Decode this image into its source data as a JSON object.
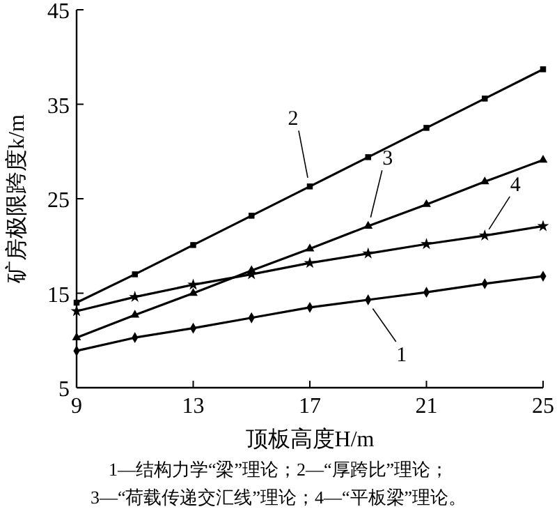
{
  "chart_data": {
    "type": "line",
    "xlabel": "顶板高度H/m",
    "ylabel": "矿房极限跨度k/m",
    "x": [
      9,
      11,
      13,
      15,
      17,
      19,
      21,
      23,
      25
    ],
    "series": [
      {
        "name": "1",
        "color": "#000000",
        "marker": "diamond",
        "values": [
          8.9,
          10.3,
          11.3,
          12.4,
          13.5,
          14.3,
          15.1,
          16.0,
          16.8
        ]
      },
      {
        "name": "2",
        "color": "#000000",
        "marker": "square",
        "values": [
          14.0,
          17.0,
          20.1,
          23.2,
          26.3,
          29.4,
          32.5,
          35.6,
          38.7
        ]
      },
      {
        "name": "3",
        "color": "#000000",
        "marker": "triangle",
        "values": [
          10.3,
          12.7,
          15.0,
          17.4,
          19.7,
          22.1,
          24.4,
          26.8,
          29.1
        ]
      },
      {
        "name": "4",
        "color": "#000000",
        "marker": "star",
        "values": [
          13.1,
          14.6,
          15.9,
          17.0,
          18.2,
          19.2,
          20.2,
          21.1,
          22.1
        ]
      }
    ],
    "xlim": [
      9,
      25
    ],
    "xticks": [
      9,
      13,
      17,
      21,
      25
    ],
    "ylim": [
      5,
      45
    ],
    "yticks": [
      5,
      15,
      25,
      35,
      45
    ],
    "grid": false,
    "line_style": "solid",
    "annotations": [
      "1—结构力学“梁”理论；2—“厚跨比”理论；",
      "3—“荷载传递交汇线”理论；4—“平板梁”理论。"
    ]
  }
}
